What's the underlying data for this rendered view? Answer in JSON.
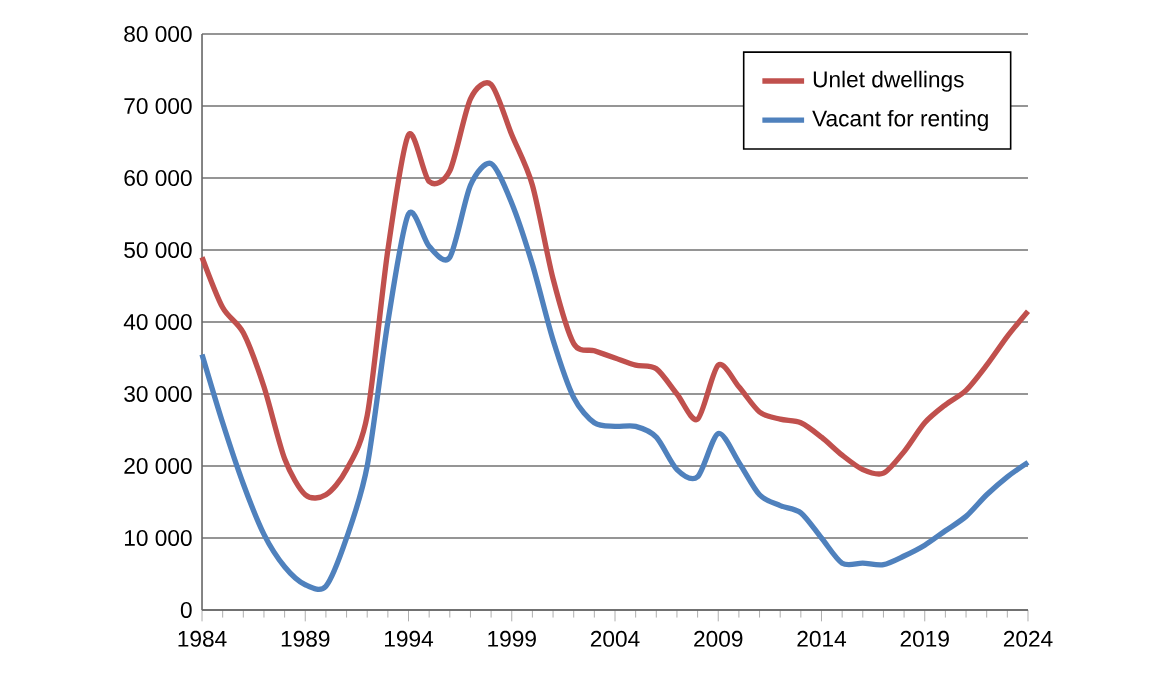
{
  "chart_data": {
    "type": "line",
    "x": [
      1984,
      1985,
      1986,
      1987,
      1988,
      1989,
      1990,
      1991,
      1992,
      1993,
      1994,
      1995,
      1996,
      1997,
      1998,
      1999,
      2000,
      2001,
      2002,
      2003,
      2004,
      2005,
      2006,
      2007,
      2008,
      2009,
      2010,
      2011,
      2012,
      2013,
      2014,
      2015,
      2016,
      2017,
      2018,
      2019,
      2020,
      2021,
      2022,
      2023,
      2024
    ],
    "series": [
      {
        "name": "Unlet dwellings",
        "color": "#c0504d",
        "values": [
          49000,
          42000,
          38500,
          31000,
          21000,
          16000,
          16000,
          19500,
          27000,
          50000,
          66000,
          59500,
          61000,
          71000,
          73000,
          66000,
          59000,
          46000,
          37000,
          36000,
          35000,
          34000,
          33500,
          30000,
          26500,
          34000,
          31000,
          27500,
          26500,
          26000,
          24000,
          21500,
          19500,
          19000,
          22000,
          26000,
          28500,
          30500,
          34000,
          38000,
          41500
        ]
      },
      {
        "name": "Vacant for renting",
        "color": "#4f81bd",
        "values": [
          35500,
          26000,
          17500,
          10500,
          6000,
          3500,
          3300,
          10000,
          20000,
          40000,
          55000,
          50500,
          49000,
          59000,
          62000,
          56500,
          48000,
          37500,
          29500,
          26000,
          25500,
          25500,
          24000,
          19500,
          18500,
          24500,
          20500,
          16000,
          14500,
          13500,
          10000,
          6500,
          6500,
          6300,
          7500,
          9000,
          11000,
          13000,
          16000,
          18500,
          20500
        ]
      }
    ],
    "xlim": [
      1984,
      2024
    ],
    "ylim": [
      0,
      80000
    ],
    "xticks": [
      1984,
      1989,
      1994,
      1999,
      2004,
      2009,
      2014,
      2019,
      2024
    ],
    "yticks": [
      {
        "value": 0,
        "label": "0"
      },
      {
        "value": 10000,
        "label": "10 000"
      },
      {
        "value": 20000,
        "label": "20 000"
      },
      {
        "value": 30000,
        "label": "30 000"
      },
      {
        "value": 40000,
        "label": "40 000"
      },
      {
        "value": 50000,
        "label": "50 000"
      },
      {
        "value": 60000,
        "label": "60 000"
      },
      {
        "value": 70000,
        "label": "70 000"
      },
      {
        "value": 80000,
        "label": "80 000"
      }
    ],
    "grid": "y",
    "legend": "top right",
    "marker": "none",
    "line_style": "solid"
  }
}
